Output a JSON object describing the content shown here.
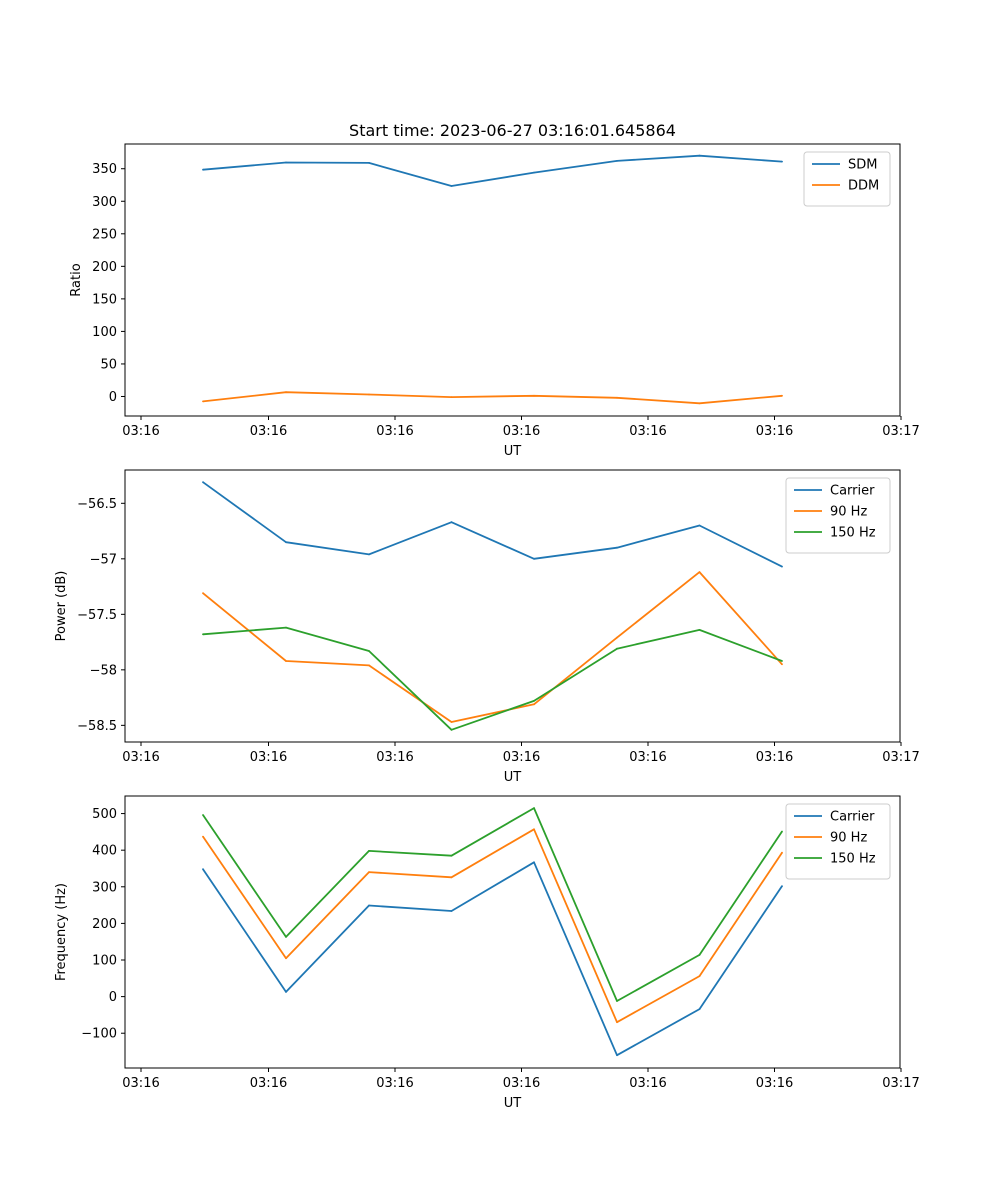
{
  "figure_title": "Start time: 2023-06-27 03:16:01.645864",
  "colors": {
    "blue": "#1f77b4",
    "orange": "#ff7f0e",
    "green": "#2ca02c"
  },
  "chart_data": [
    {
      "type": "line",
      "title": "Start time: 2023-06-27 03:16:01.645864",
      "xlabel": "UT",
      "ylabel": "Ratio",
      "x_tick_labels": [
        "03:16",
        "03:16",
        "03:16",
        "03:16",
        "03:16",
        "03:16",
        "03:17"
      ],
      "y_ticks": [
        0,
        50,
        100,
        150,
        200,
        250,
        300,
        350
      ],
      "ylim": [
        -30,
        388
      ],
      "legend_position": "top-right",
      "series": [
        {
          "name": "SDM",
          "color": "#1f77b4",
          "values": [
            348.5,
            359.5,
            359.0,
            323.5,
            344.0,
            362.0,
            370.0,
            361.0
          ]
        },
        {
          "name": "DDM",
          "color": "#ff7f0e",
          "values": [
            -7.5,
            6.5,
            3.0,
            -1.0,
            1.0,
            -2.0,
            -10.5,
            1.0
          ]
        }
      ]
    },
    {
      "type": "line",
      "title": "",
      "xlabel": "UT",
      "ylabel": "Power (dB)",
      "x_tick_labels": [
        "03:16",
        "03:16",
        "03:16",
        "03:16",
        "03:16",
        "03:16",
        "03:17"
      ],
      "y_ticks": [
        -56.5,
        -57.0,
        -57.5,
        -58.0,
        -58.5
      ],
      "ylim": [
        -58.65,
        -56.2
      ],
      "legend_position": "top-right",
      "series": [
        {
          "name": "Carrier",
          "color": "#1f77b4",
          "values": [
            -56.31,
            -56.85,
            -56.96,
            -56.67,
            -57.0,
            -56.9,
            -56.7,
            -57.07
          ]
        },
        {
          "name": "90 Hz",
          "color": "#ff7f0e",
          "values": [
            -57.31,
            -57.92,
            -57.96,
            -58.47,
            -58.31,
            -57.71,
            -57.12,
            -57.95
          ]
        },
        {
          "name": "150 Hz",
          "color": "#2ca02c",
          "values": [
            -57.68,
            -57.62,
            -57.83,
            -58.54,
            -58.28,
            -57.81,
            -57.64,
            -57.92
          ]
        }
      ]
    },
    {
      "type": "line",
      "title": "",
      "xlabel": "UT",
      "ylabel": "Frequency (Hz)",
      "x_tick_labels": [
        "03:16",
        "03:16",
        "03:16",
        "03:16",
        "03:16",
        "03:16",
        "03:17"
      ],
      "y_ticks": [
        -100,
        0,
        100,
        200,
        300,
        400,
        500
      ],
      "ylim": [
        -195,
        548
      ],
      "legend_position": "top-right",
      "series": [
        {
          "name": "Carrier",
          "color": "#1f77b4",
          "values": [
            348,
            13,
            249,
            234,
            367,
            -160,
            -34,
            302
          ]
        },
        {
          "name": "90 Hz",
          "color": "#ff7f0e",
          "values": [
            437,
            105,
            340,
            326,
            457,
            -70,
            56,
            393
          ]
        },
        {
          "name": "150 Hz",
          "color": "#2ca02c",
          "values": [
            496,
            163,
            398,
            385,
            515,
            -12,
            114,
            451
          ]
        }
      ]
    }
  ]
}
